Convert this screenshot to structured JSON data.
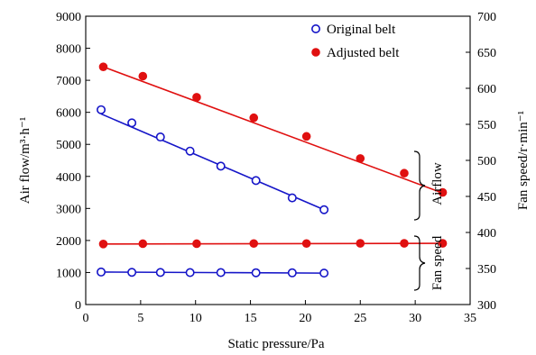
{
  "chart_data": {
    "type": "scatter",
    "xlabel": "Static pressure/Pa",
    "ylabel_left": "Air flow/m³·h⁻¹",
    "ylabel_right": "Fan speed/r·min⁻¹",
    "xlim": [
      0,
      35
    ],
    "ylim_left": [
      0,
      9000
    ],
    "ylim_right": [
      300,
      700
    ],
    "x_ticks": [
      0,
      5,
      10,
      15,
      20,
      25,
      30,
      35
    ],
    "y_left_ticks": [
      0,
      1000,
      2000,
      3000,
      4000,
      5000,
      6000,
      7000,
      8000,
      9000
    ],
    "y_right_ticks": [
      300,
      350,
      400,
      450,
      500,
      550,
      600,
      650,
      700
    ],
    "grid": false,
    "legend": {
      "position": "top-right",
      "entries": [
        {
          "label": "Original belt",
          "marker": "open-circle",
          "color": "#1515c8"
        },
        {
          "label": "Adjusted belt",
          "marker": "filled-circle",
          "color": "#e01010"
        }
      ]
    },
    "annotations": [
      {
        "text": "Airflow",
        "refers_to": "airflow series"
      },
      {
        "text": "Fan speed",
        "refers_to": "fan speed series"
      }
    ],
    "series": [
      {
        "name": "Original belt",
        "measure": "Air flow",
        "axis": "left",
        "marker": "open-circle",
        "color": "#1515c8",
        "points": [
          [
            1.4,
            6080
          ],
          [
            4.2,
            5670
          ],
          [
            6.8,
            5230
          ],
          [
            9.5,
            4790
          ],
          [
            12.3,
            4320
          ],
          [
            15.5,
            3870
          ],
          [
            18.8,
            3330
          ],
          [
            21.7,
            2960
          ]
        ],
        "fit": [
          [
            1.4,
            5950
          ],
          [
            21.7,
            2960
          ]
        ]
      },
      {
        "name": "Adjusted belt",
        "measure": "Air flow",
        "axis": "left",
        "marker": "filled-circle",
        "color": "#e01010",
        "points": [
          [
            1.6,
            7420
          ],
          [
            5.2,
            7130
          ],
          [
            10.1,
            6470
          ],
          [
            15.3,
            5830
          ],
          [
            20.1,
            5250
          ],
          [
            25.0,
            4560
          ],
          [
            29.0,
            4100
          ],
          [
            32.5,
            3500
          ]
        ],
        "fit": [
          [
            1.6,
            7420
          ],
          [
            32.5,
            3480
          ]
        ]
      },
      {
        "name": "Original belt",
        "measure": "Fan speed",
        "axis": "right",
        "marker": "open-circle",
        "color": "#1515c8",
        "points": [
          [
            1.4,
            345.1
          ],
          [
            4.2,
            344.7
          ],
          [
            6.8,
            344.5
          ],
          [
            9.5,
            344.4
          ],
          [
            12.3,
            344.4
          ],
          [
            15.5,
            344.1
          ],
          [
            18.8,
            344.0
          ],
          [
            21.7,
            343.6
          ]
        ],
        "fit": [
          [
            1.4,
            345.1
          ],
          [
            21.7,
            343.6
          ]
        ]
      },
      {
        "name": "Adjusted belt",
        "measure": "Fan speed",
        "axis": "right",
        "marker": "filled-circle",
        "color": "#e01010",
        "points": [
          [
            1.6,
            384.0
          ],
          [
            5.2,
            384.4
          ],
          [
            10.1,
            384.4
          ],
          [
            15.3,
            384.7
          ],
          [
            20.1,
            384.7
          ],
          [
            25.0,
            384.9
          ],
          [
            29.0,
            384.9
          ],
          [
            32.5,
            384.9
          ]
        ],
        "fit": [
          [
            1.6,
            384.0
          ],
          [
            32.5,
            384.9
          ]
        ]
      }
    ]
  }
}
